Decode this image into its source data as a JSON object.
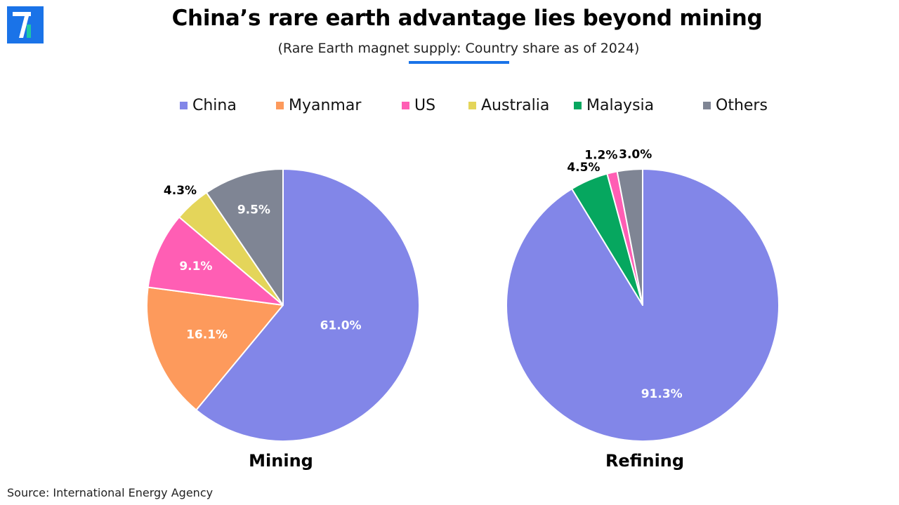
{
  "header": {
    "title": "China’s rare earth advantage lies beyond mining",
    "subtitle": "(Rare Earth magnet supply: Country share as of 2024)",
    "accent_color": "#1a73e8"
  },
  "footer": {
    "source": "Source: International Energy Agency"
  },
  "chart_data": [
    {
      "type": "pie",
      "title": "Mining",
      "unit": "%",
      "slices": [
        {
          "label": "China",
          "value": 61.0,
          "display": "61.0%",
          "color": "#8286e8"
        },
        {
          "label": "Myanmar",
          "value": 16.1,
          "display": "16.1%",
          "color": "#fd9a5c"
        },
        {
          "label": "US",
          "value": 9.1,
          "display": "9.1%",
          "color": "#ff5eb4"
        },
        {
          "label": "Australia",
          "value": 4.3,
          "display": "4.3%",
          "color": "#e4d55a"
        },
        {
          "label": "Others",
          "value": 9.5,
          "display": "9.5%",
          "color": "#7f8594"
        }
      ]
    },
    {
      "type": "pie",
      "title": "Refining",
      "unit": "%",
      "slices": [
        {
          "label": "China",
          "value": 91.3,
          "display": "91.3%",
          "color": "#8286e8"
        },
        {
          "label": "Malaysia",
          "value": 4.5,
          "display": "4.5%",
          "color": "#06a75f"
        },
        {
          "label": "US",
          "value": 1.2,
          "display": "1.2%",
          "color": "#ff5eb4"
        },
        {
          "label": "Others",
          "value": 3.0,
          "display": "3.0%",
          "color": "#7f8594"
        }
      ]
    }
  ],
  "legend": [
    {
      "label": "China",
      "color": "#8286e8"
    },
    {
      "label": "Myanmar",
      "color": "#fd9a5c"
    },
    {
      "label": "US",
      "color": "#ff5eb4"
    },
    {
      "label": "Australia",
      "color": "#e4d55a"
    },
    {
      "label": "Malaysia",
      "color": "#06a75f"
    },
    {
      "label": "Others",
      "color": "#7f8594"
    }
  ]
}
